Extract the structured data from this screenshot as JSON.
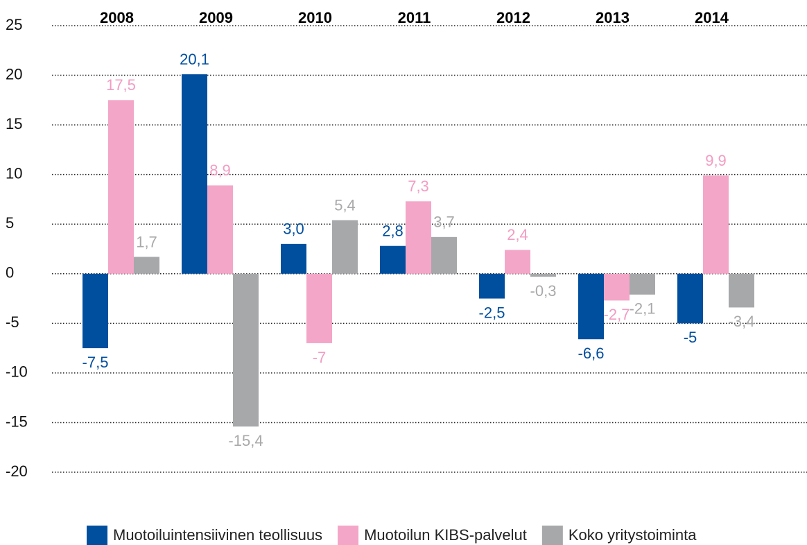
{
  "chart_data": {
    "type": "bar",
    "categories": [
      "2008",
      "2009",
      "2010",
      "2011",
      "2012",
      "2013",
      "2014"
    ],
    "series": [
      {
        "name": "Muotoiluintensiivinen teollisuus",
        "color": "#004f9f",
        "label_color": "#004f9f",
        "values": [
          -7.5,
          20.1,
          3.0,
          2.8,
          -2.5,
          -6.6,
          -5
        ],
        "value_labels": [
          "-7,5",
          "20,1",
          "3,0",
          "2,8",
          "-2,5",
          "-6,6",
          "-5"
        ]
      },
      {
        "name": "Muotoilun KIBS-palvelut",
        "color": "#f4a6c8",
        "label_color": "#f29cc2",
        "values": [
          17.5,
          8.9,
          -7,
          7.3,
          2.4,
          -2.7,
          9.9
        ],
        "value_labels": [
          "17,5",
          "8,9",
          "-7",
          "7,3",
          "2,4",
          "-2,7",
          "9,9"
        ]
      },
      {
        "name": "Koko yritystoiminta",
        "color": "#a7a8aa",
        "label_color": "#a9a9ab",
        "values": [
          1.7,
          -15.4,
          5.4,
          3.7,
          -0.3,
          -2.1,
          -3.4
        ],
        "value_labels": [
          "1,7",
          "-15,4",
          "5,4",
          "3,7",
          "-0,3",
          "-2,1",
          "-3,4"
        ]
      }
    ],
    "ylim": [
      -20,
      25
    ],
    "yticks": [
      -20,
      -15,
      -10,
      -5,
      0,
      5,
      10,
      15,
      20,
      25
    ],
    "grid": true,
    "legend": "bottom"
  }
}
